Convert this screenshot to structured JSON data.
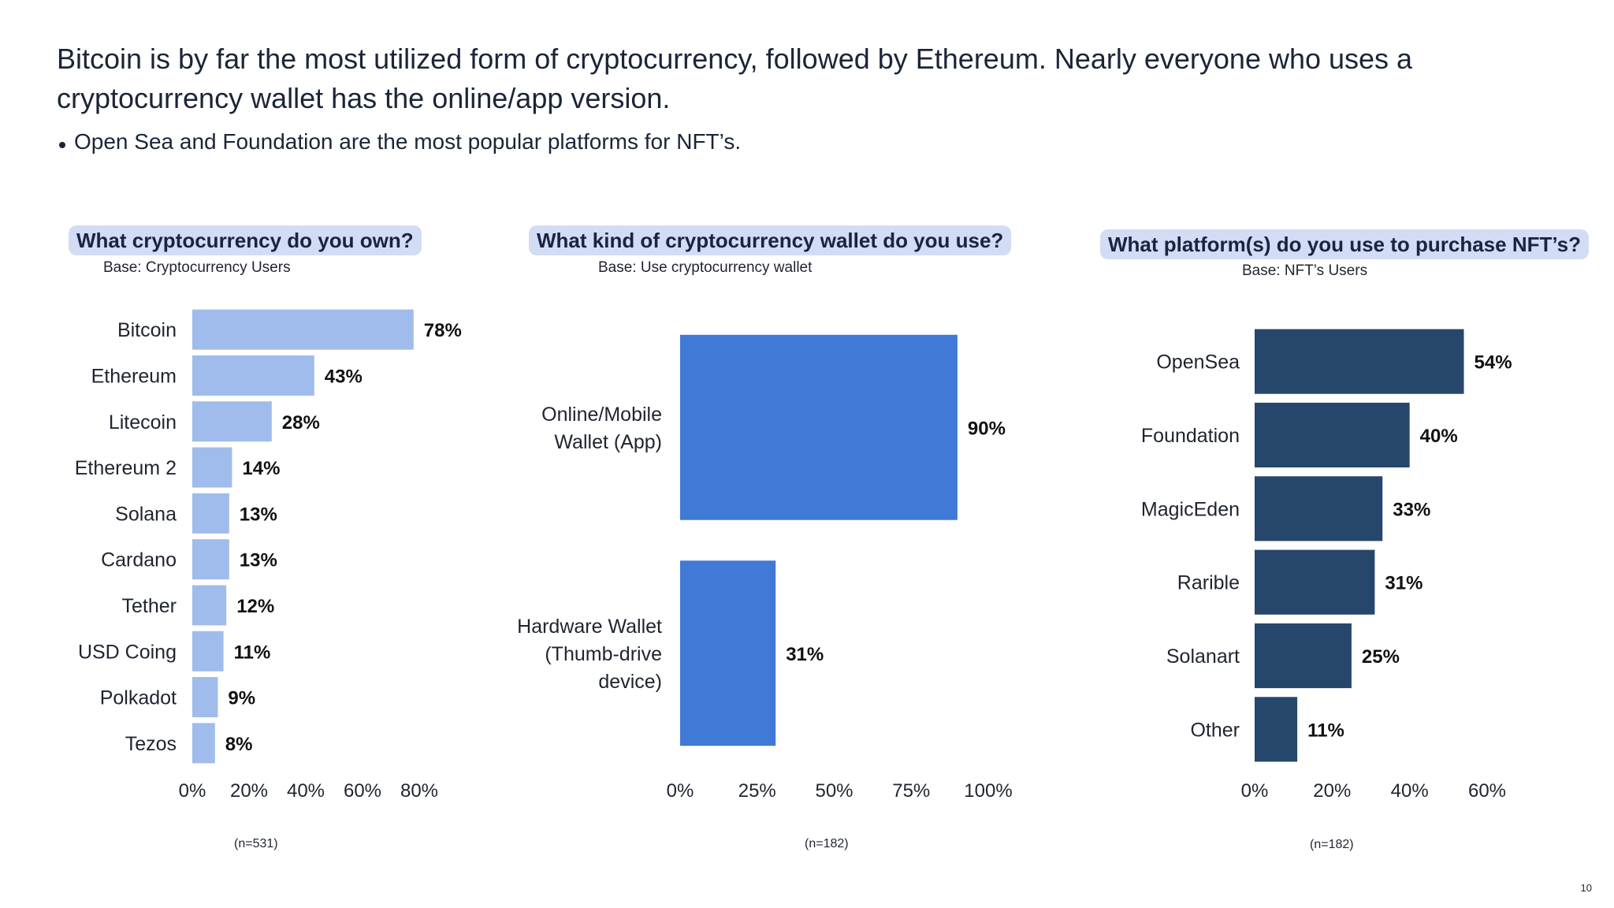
{
  "headline": "Bitcoin is by far the most utilized form of cryptocurrency, followed by Ethereum. Nearly everyone who uses a cryptocurrency wallet has the online/app version.",
  "bullet": "Open Sea and Foundation are the most popular platforms for NFT’s.",
  "page_number": "10",
  "charts": [
    {
      "question": "What cryptocurrency do you own?",
      "base": "Base: Cryptocurrency Users",
      "n": "(n=531)"
    },
    {
      "question": "What kind of cryptocurrency wallet do you use?",
      "base": "Base: Use cryptocurrency wallet",
      "n": "(n=182)"
    },
    {
      "question": "What platform(s) do you use to purchase NFT’s?",
      "base": "Base: NFT’s Users",
      "n": "(n=182)"
    }
  ],
  "chart_data": [
    {
      "type": "bar",
      "orientation": "horizontal",
      "title": "What cryptocurrency do you own?",
      "categories": [
        "Bitcoin",
        "Ethereum",
        "Litecoin",
        "Ethereum 2",
        "Solana",
        "Cardano",
        "Tether",
        "USD Coing",
        "Polkadot",
        "Tezos"
      ],
      "values": [
        78,
        43,
        28,
        14,
        13,
        13,
        12,
        11,
        9,
        8
      ],
      "value_labels": [
        "78%",
        "43%",
        "28%",
        "14%",
        "13%",
        "13%",
        "12%",
        "11%",
        "9%",
        "8%"
      ],
      "xlim": [
        0,
        80
      ],
      "xticks": [
        "0%",
        "20%",
        "40%",
        "60%",
        "80%"
      ],
      "color": "#a0bcec",
      "grid": false
    },
    {
      "type": "bar",
      "orientation": "horizontal",
      "title": "What kind of cryptocurrency wallet do you use?",
      "categories": [
        [
          "Online/Mobile",
          "Wallet (App)"
        ],
        [
          "Hardware Wallet",
          "(Thumb-drive",
          "device)"
        ]
      ],
      "values": [
        90,
        31
      ],
      "value_labels": [
        "90%",
        "31%"
      ],
      "xlim": [
        0,
        100
      ],
      "xticks": [
        "0%",
        "25%",
        "50%",
        "75%",
        "100%"
      ],
      "color": "#4079d6",
      "grid": false
    },
    {
      "type": "bar",
      "orientation": "horizontal",
      "title": "What platform(s) do you use to purchase NFT’s?",
      "categories": [
        "OpenSea",
        "Foundation",
        "MagicEden",
        "Rarible",
        "Solanart",
        "Other"
      ],
      "values": [
        54,
        40,
        33,
        31,
        25,
        11
      ],
      "value_labels": [
        "54%",
        "40%",
        "33%",
        "31%",
        "25%",
        "11%"
      ],
      "xlim": [
        0,
        60
      ],
      "xticks": [
        "0%",
        "20%",
        "40%",
        "60%"
      ],
      "color": "#27466b",
      "grid": false
    }
  ]
}
